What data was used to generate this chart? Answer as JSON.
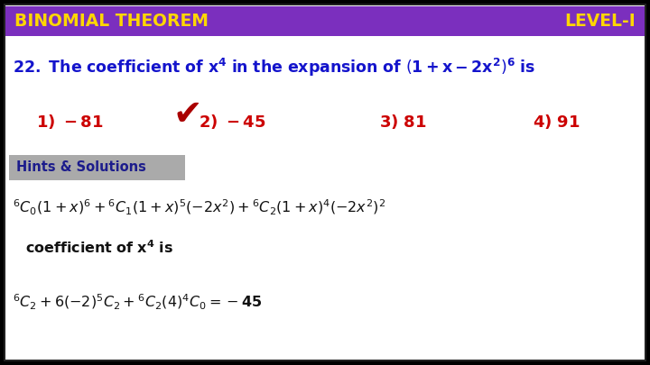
{
  "title_left": "BINOMIAL THEOREM",
  "title_right": "LEVEL-I",
  "header_bg": "#7B2FBE",
  "header_text_color": "#FFD700",
  "outer_bg": "#000000",
  "inner_bg": "#FFFFFF",
  "border_color": "#333333",
  "question_color": "#1414CC",
  "options_color": "#CC0000",
  "hints_bg": "#AAAAAA",
  "hints_text": "Hints & Solutions",
  "hints_text_color": "#1C1C8C",
  "solution_color": "#111111",
  "checkmark_color": "#AA0000",
  "fig_width": 7.2,
  "fig_height": 4.05,
  "dpi": 100
}
